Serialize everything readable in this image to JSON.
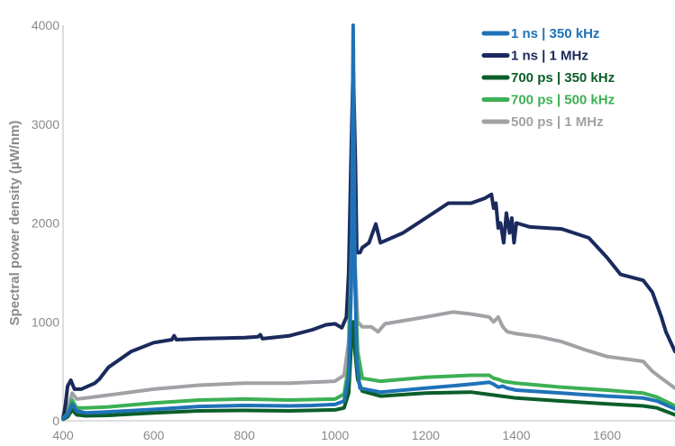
{
  "chart_data": {
    "type": "line",
    "xlabel": "",
    "ylabel": "Spectral power density (µW/nm)",
    "xlim": [
      400,
      1750
    ],
    "ylim": [
      0,
      4000
    ],
    "x_ticks": [
      "400",
      "600",
      "800",
      "1000",
      "1200",
      "1400",
      "1600"
    ],
    "y_ticks": [
      "0",
      "1000",
      "2000",
      "3000",
      "4000"
    ],
    "legend_position": "top-right",
    "grid": false,
    "series": [
      {
        "name": "1 ns | 350 kHz",
        "color": "#1f72b8",
        "points": [
          [
            400,
            20
          ],
          [
            410,
            60
          ],
          [
            420,
            170
          ],
          [
            430,
            100
          ],
          [
            450,
            80
          ],
          [
            500,
            90
          ],
          [
            600,
            115
          ],
          [
            700,
            145
          ],
          [
            800,
            155
          ],
          [
            900,
            150
          ],
          [
            950,
            155
          ],
          [
            1000,
            165
          ],
          [
            1020,
            200
          ],
          [
            1030,
            450
          ],
          [
            1036,
            1400
          ],
          [
            1040,
            4000
          ],
          [
            1044,
            1500
          ],
          [
            1048,
            600
          ],
          [
            1055,
            330
          ],
          [
            1100,
            290
          ],
          [
            1200,
            330
          ],
          [
            1300,
            370
          ],
          [
            1340,
            390
          ],
          [
            1350,
            370
          ],
          [
            1360,
            340
          ],
          [
            1370,
            350
          ],
          [
            1380,
            330
          ],
          [
            1400,
            310
          ],
          [
            1500,
            280
          ],
          [
            1600,
            250
          ],
          [
            1680,
            230
          ],
          [
            1710,
            200
          ],
          [
            1750,
            120
          ]
        ]
      },
      {
        "name": "1 ns | 1 MHz",
        "color": "#1b2a5c",
        "points": [
          [
            400,
            30
          ],
          [
            405,
            150
          ],
          [
            410,
            350
          ],
          [
            417,
            410
          ],
          [
            425,
            320
          ],
          [
            440,
            320
          ],
          [
            470,
            380
          ],
          [
            480,
            420
          ],
          [
            500,
            540
          ],
          [
            550,
            700
          ],
          [
            600,
            790
          ],
          [
            640,
            820
          ],
          [
            645,
            860
          ],
          [
            650,
            820
          ],
          [
            700,
            830
          ],
          [
            800,
            840
          ],
          [
            830,
            850
          ],
          [
            835,
            870
          ],
          [
            840,
            830
          ],
          [
            900,
            860
          ],
          [
            950,
            920
          ],
          [
            980,
            970
          ],
          [
            1000,
            980
          ],
          [
            1015,
            940
          ],
          [
            1025,
            1050
          ],
          [
            1030,
            1500
          ],
          [
            1035,
            2600
          ],
          [
            1040,
            3600
          ],
          [
            1045,
            2600
          ],
          [
            1048,
            1700
          ],
          [
            1055,
            1700
          ],
          [
            1060,
            1750
          ],
          [
            1075,
            1800
          ],
          [
            1090,
            1990
          ],
          [
            1100,
            1800
          ],
          [
            1150,
            1900
          ],
          [
            1200,
            2050
          ],
          [
            1250,
            2200
          ],
          [
            1300,
            2200
          ],
          [
            1330,
            2250
          ],
          [
            1345,
            2290
          ],
          [
            1350,
            2150
          ],
          [
            1355,
            2200
          ],
          [
            1360,
            1950
          ],
          [
            1365,
            2000
          ],
          [
            1372,
            1800
          ],
          [
            1378,
            2100
          ],
          [
            1385,
            1900
          ],
          [
            1390,
            2050
          ],
          [
            1395,
            1800
          ],
          [
            1400,
            2000
          ],
          [
            1430,
            1960
          ],
          [
            1500,
            1940
          ],
          [
            1560,
            1850
          ],
          [
            1600,
            1650
          ],
          [
            1630,
            1480
          ],
          [
            1680,
            1420
          ],
          [
            1700,
            1300
          ],
          [
            1720,
            1050
          ],
          [
            1730,
            900
          ],
          [
            1750,
            700
          ]
        ]
      },
      {
        "name": "700 ps | 350 kHz",
        "color": "#0b5e2a",
        "points": [
          [
            400,
            15
          ],
          [
            410,
            40
          ],
          [
            420,
            110
          ],
          [
            430,
            60
          ],
          [
            450,
            50
          ],
          [
            500,
            55
          ],
          [
            600,
            80
          ],
          [
            700,
            100
          ],
          [
            800,
            105
          ],
          [
            900,
            100
          ],
          [
            1000,
            110
          ],
          [
            1020,
            130
          ],
          [
            1030,
            280
          ],
          [
            1036,
            800
          ],
          [
            1040,
            1000
          ],
          [
            1044,
            700
          ],
          [
            1050,
            420
          ],
          [
            1060,
            300
          ],
          [
            1100,
            250
          ],
          [
            1200,
            280
          ],
          [
            1300,
            290
          ],
          [
            1350,
            260
          ],
          [
            1400,
            230
          ],
          [
            1500,
            200
          ],
          [
            1600,
            170
          ],
          [
            1680,
            150
          ],
          [
            1710,
            130
          ],
          [
            1750,
            60
          ]
        ]
      },
      {
        "name": "700 ps | 500 kHz",
        "color": "#3cb054",
        "points": [
          [
            400,
            25
          ],
          [
            410,
            70
          ],
          [
            420,
            210
          ],
          [
            430,
            130
          ],
          [
            450,
            130
          ],
          [
            500,
            140
          ],
          [
            600,
            180
          ],
          [
            700,
            210
          ],
          [
            800,
            220
          ],
          [
            900,
            210
          ],
          [
            1000,
            220
          ],
          [
            1020,
            270
          ],
          [
            1030,
            550
          ],
          [
            1036,
            1700
          ],
          [
            1040,
            2300
          ],
          [
            1044,
            1400
          ],
          [
            1050,
            700
          ],
          [
            1060,
            430
          ],
          [
            1100,
            400
          ],
          [
            1200,
            440
          ],
          [
            1300,
            460
          ],
          [
            1340,
            460
          ],
          [
            1350,
            430
          ],
          [
            1360,
            420
          ],
          [
            1370,
            400
          ],
          [
            1400,
            380
          ],
          [
            1500,
            340
          ],
          [
            1600,
            310
          ],
          [
            1680,
            280
          ],
          [
            1710,
            240
          ],
          [
            1750,
            150
          ]
        ]
      },
      {
        "name": "500 ps | 1 MHz",
        "color": "#a0a2a6",
        "points": [
          [
            400,
            30
          ],
          [
            410,
            120
          ],
          [
            420,
            280
          ],
          [
            430,
            220
          ],
          [
            450,
            230
          ],
          [
            500,
            260
          ],
          [
            600,
            320
          ],
          [
            700,
            360
          ],
          [
            800,
            380
          ],
          [
            900,
            380
          ],
          [
            1000,
            400
          ],
          [
            1020,
            460
          ],
          [
            1030,
            800
          ],
          [
            1036,
            1900
          ],
          [
            1040,
            2300
          ],
          [
            1044,
            1600
          ],
          [
            1050,
            1000
          ],
          [
            1060,
            950
          ],
          [
            1080,
            950
          ],
          [
            1095,
            900
          ],
          [
            1110,
            980
          ],
          [
            1200,
            1050
          ],
          [
            1260,
            1100
          ],
          [
            1300,
            1080
          ],
          [
            1340,
            1050
          ],
          [
            1350,
            1000
          ],
          [
            1360,
            1050
          ],
          [
            1370,
            950
          ],
          [
            1380,
            900
          ],
          [
            1400,
            880
          ],
          [
            1450,
            850
          ],
          [
            1500,
            800
          ],
          [
            1550,
            720
          ],
          [
            1600,
            650
          ],
          [
            1650,
            620
          ],
          [
            1680,
            600
          ],
          [
            1700,
            500
          ],
          [
            1720,
            430
          ],
          [
            1750,
            330
          ]
        ]
      }
    ]
  }
}
